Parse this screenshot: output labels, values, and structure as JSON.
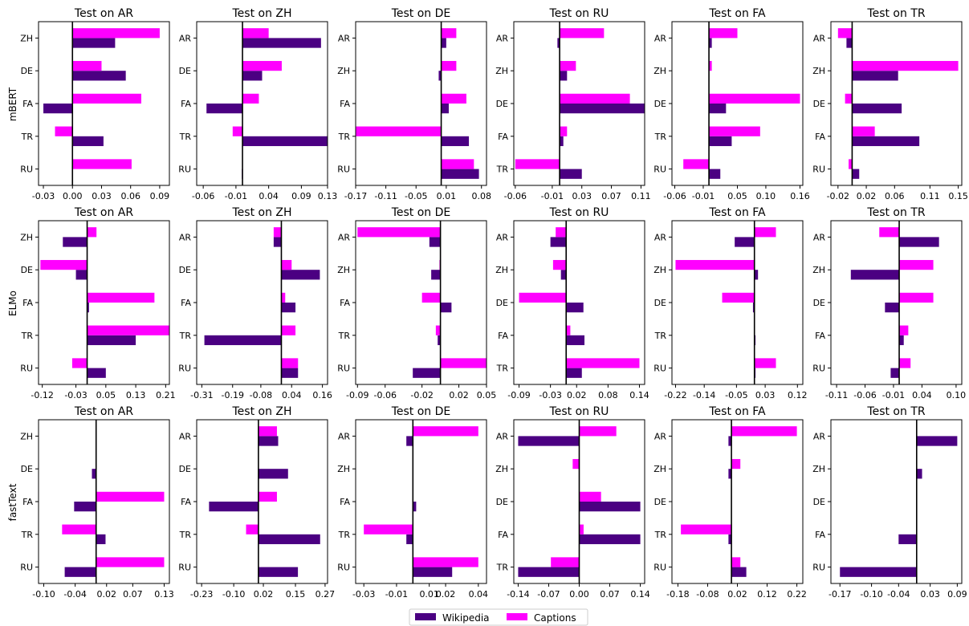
{
  "colors": {
    "wikipedia": "#4b0082",
    "captions": "#ff00ff",
    "axis": "#000000"
  },
  "legend": {
    "wikipedia": "Wikipedia",
    "captions": "Captions"
  },
  "row_labels": [
    "mBERT",
    "ELMo",
    "fastText"
  ],
  "chart_data": [
    {
      "type": "bar",
      "orientation": "horizontal",
      "model": "mBERT",
      "title": "Test on AR",
      "categories": [
        "RU",
        "TR",
        "FA",
        "DE",
        "ZH"
      ],
      "xticks": [
        "-0.03",
        "0.00",
        "0.03",
        "0.06",
        "0.09"
      ],
      "xlim": [
        -0.035,
        0.1
      ],
      "series": [
        {
          "name": "Wikipedia",
          "values": [
            0.0,
            0.032,
            -0.03,
            0.055,
            0.044
          ]
        },
        {
          "name": "Captions",
          "values": [
            0.061,
            -0.018,
            0.071,
            0.03,
            0.09
          ]
        }
      ]
    },
    {
      "type": "bar",
      "orientation": "horizontal",
      "model": "mBERT",
      "title": "Test on ZH",
      "categories": [
        "RU",
        "TR",
        "FA",
        "DE",
        "AR"
      ],
      "xticks": [
        "-0.06",
        "-0.01",
        "0.04",
        "0.09",
        "0.13"
      ],
      "xlim": [
        -0.07,
        0.13
      ],
      "series": [
        {
          "name": "Wikipedia",
          "values": [
            -0.001,
            0.13,
            -0.055,
            0.03,
            0.12
          ]
        },
        {
          "name": "Captions",
          "values": [
            0.0,
            -0.015,
            0.025,
            0.06,
            0.04
          ]
        }
      ]
    },
    {
      "type": "bar",
      "orientation": "horizontal",
      "model": "mBERT",
      "title": "Test on DE",
      "categories": [
        "RU",
        "TR",
        "FA",
        "ZH",
        "AR"
      ],
      "xticks": [
        "-0.17",
        "-0.11",
        "-0.05",
        "0.01",
        "0.08"
      ],
      "xlim": [
        -0.17,
        0.09
      ],
      "series": [
        {
          "name": "Wikipedia",
          "values": [
            0.075,
            0.055,
            0.015,
            -0.005,
            0.01
          ]
        },
        {
          "name": "Captions",
          "values": [
            0.065,
            -0.17,
            0.05,
            0.03,
            0.03
          ]
        }
      ]
    },
    {
      "type": "bar",
      "orientation": "horizontal",
      "model": "mBERT",
      "title": "Test on RU",
      "categories": [
        "TR",
        "FA",
        "DE",
        "ZH",
        "AR"
      ],
      "xticks": [
        "-0.06",
        "-0.01",
        "0.03",
        "0.07",
        "0.11"
      ],
      "xlim": [
        -0.062,
        0.115
      ],
      "series": [
        {
          "name": "Wikipedia",
          "values": [
            0.03,
            0.005,
            0.115,
            0.01,
            -0.003
          ]
        },
        {
          "name": "Captions",
          "values": [
            -0.06,
            0.01,
            0.095,
            0.022,
            0.06
          ]
        }
      ]
    },
    {
      "type": "bar",
      "orientation": "horizontal",
      "model": "mBERT",
      "title": "Test on FA",
      "categories": [
        "RU",
        "TR",
        "DE",
        "ZH",
        "AR"
      ],
      "xticks": [
        "-0.06",
        "-0.01",
        "0.05",
        "0.10",
        "0.16"
      ],
      "xlim": [
        -0.065,
        0.165
      ],
      "series": [
        {
          "name": "Wikipedia",
          "values": [
            0.02,
            0.04,
            0.03,
            0.0,
            0.005
          ]
        },
        {
          "name": "Captions",
          "values": [
            -0.045,
            0.09,
            0.16,
            0.005,
            0.05
          ]
        }
      ]
    },
    {
      "type": "bar",
      "orientation": "horizontal",
      "model": "mBERT",
      "title": "Test on TR",
      "categories": [
        "RU",
        "FA",
        "DE",
        "ZH",
        "AR"
      ],
      "xticks": [
        "-0.02",
        "0.02",
        "0.06",
        "0.11",
        "0.15"
      ],
      "xlim": [
        -0.03,
        0.155
      ],
      "series": [
        {
          "name": "Wikipedia",
          "values": [
            0.01,
            0.095,
            0.07,
            0.065,
            -0.008
          ]
        },
        {
          "name": "Captions",
          "values": [
            -0.005,
            0.032,
            -0.01,
            0.15,
            -0.02
          ]
        }
      ]
    },
    {
      "type": "bar",
      "orientation": "horizontal",
      "model": "ELMo",
      "title": "Test on AR",
      "categories": [
        "RU",
        "TR",
        "FA",
        "DE",
        "ZH"
      ],
      "xticks": [
        "-0.12",
        "-0.03",
        "0.05",
        "0.13",
        "0.21"
      ],
      "xlim": [
        -0.13,
        0.22
      ],
      "series": [
        {
          "name": "Wikipedia",
          "values": [
            0.05,
            0.13,
            0.005,
            -0.03,
            -0.065
          ]
        },
        {
          "name": "Captions",
          "values": [
            -0.04,
            0.22,
            0.18,
            -0.125,
            0.025
          ]
        }
      ]
    },
    {
      "type": "bar",
      "orientation": "horizontal",
      "model": "ELMo",
      "title": "Test on ZH",
      "categories": [
        "RU",
        "TR",
        "FA",
        "DE",
        "AR"
      ],
      "xticks": [
        "-0.31",
        "-0.19",
        "-0.08",
        "0.04",
        "0.16"
      ],
      "xlim": [
        -0.33,
        0.18
      ],
      "series": [
        {
          "name": "Wikipedia",
          "values": [
            0.065,
            -0.3,
            0.055,
            0.15,
            -0.03
          ]
        },
        {
          "name": "Captions",
          "values": [
            0.065,
            0.055,
            0.015,
            0.04,
            -0.03
          ]
        }
      ]
    },
    {
      "type": "bar",
      "orientation": "horizontal",
      "model": "ELMo",
      "title": "Test on DE",
      "categories": [
        "RU",
        "TR",
        "FA",
        "ZH",
        "AR"
      ],
      "xticks": [
        "-0.09",
        "-0.06",
        "-0.02",
        "0.02",
        "0.05"
      ],
      "xlim": [
        -0.092,
        0.05
      ],
      "series": [
        {
          "name": "Wikipedia",
          "values": [
            -0.03,
            -0.003,
            0.012,
            -0.01,
            -0.012
          ]
        },
        {
          "name": "Captions",
          "values": [
            0.05,
            -0.005,
            -0.02,
            -0.001,
            -0.09
          ]
        }
      ]
    },
    {
      "type": "bar",
      "orientation": "horizontal",
      "model": "ELMo",
      "title": "Test on RU",
      "categories": [
        "TR",
        "FA",
        "DE",
        "ZH",
        "AR"
      ],
      "xticks": [
        "-0.09",
        "-0.03",
        "0.02",
        "0.08",
        "0.14"
      ],
      "xlim": [
        -0.1,
        0.15
      ],
      "series": [
        {
          "name": "Wikipedia",
          "values": [
            0.03,
            0.035,
            0.033,
            -0.01,
            -0.03
          ]
        },
        {
          "name": "Captions",
          "values": [
            0.14,
            0.008,
            -0.09,
            -0.025,
            -0.02
          ]
        }
      ]
    },
    {
      "type": "bar",
      "orientation": "horizontal",
      "model": "ELMo",
      "title": "Test on FA",
      "categories": [
        "RU",
        "TR",
        "DE",
        "ZH",
        "AR"
      ],
      "xticks": [
        "-0.22",
        "-0.14",
        "-0.05",
        "0.03",
        "0.12"
      ],
      "xlim": [
        -0.23,
        0.135
      ],
      "series": [
        {
          "name": "Wikipedia",
          "values": [
            0.003,
            0.003,
            -0.004,
            0.01,
            -0.055
          ]
        },
        {
          "name": "Captions",
          "values": [
            0.06,
            -0.001,
            -0.09,
            -0.22,
            0.06
          ]
        }
      ]
    },
    {
      "type": "bar",
      "orientation": "horizontal",
      "model": "ELMo",
      "title": "Test on TR",
      "categories": [
        "RU",
        "FA",
        "DE",
        "ZH",
        "AR"
      ],
      "xticks": [
        "-0.11",
        "-0.06",
        "-0.01",
        "0.04",
        "0.10"
      ],
      "xlim": [
        -0.12,
        0.11
      ],
      "series": [
        {
          "name": "Wikipedia",
          "values": [
            -0.015,
            0.008,
            -0.025,
            -0.085,
            0.07
          ]
        },
        {
          "name": "Captions",
          "values": [
            0.02,
            0.016,
            0.06,
            0.06,
            -0.035
          ]
        }
      ]
    },
    {
      "type": "bar",
      "orientation": "horizontal",
      "model": "fastText",
      "title": "Test on AR",
      "categories": [
        "RU",
        "TR",
        "FA",
        "DE",
        "ZH"
      ],
      "xticks": [
        "-0.10",
        "-0.04",
        "0.02",
        "0.07",
        "0.13"
      ],
      "xlim": [
        -0.11,
        0.14
      ],
      "series": [
        {
          "name": "Wikipedia",
          "values": [
            -0.06,
            0.018,
            -0.042,
            -0.008,
            0.0
          ]
        },
        {
          "name": "Captions",
          "values": [
            0.13,
            -0.065,
            0.13,
            0.0,
            0.0
          ]
        }
      ]
    },
    {
      "type": "bar",
      "orientation": "horizontal",
      "model": "fastText",
      "title": "Test on ZH",
      "categories": [
        "RU",
        "TR",
        "FA",
        "DE",
        "AR"
      ],
      "xticks": [
        "-0.23",
        "-0.10",
        "0.02",
        "0.15",
        "0.27"
      ],
      "xlim": [
        -0.25,
        0.28
      ],
      "series": [
        {
          "name": "Wikipedia",
          "values": [
            0.16,
            0.25,
            -0.2,
            0.12,
            0.08
          ]
        },
        {
          "name": "Captions",
          "values": [
            0.0,
            -0.05,
            0.075,
            0.0,
            0.075
          ]
        }
      ]
    },
    {
      "type": "bar",
      "orientation": "horizontal",
      "model": "fastText",
      "title": "Test on DE",
      "categories": [
        "RU",
        "TR",
        "FA",
        "ZH",
        "AR"
      ],
      "xticks": [
        "-0.03",
        "-0.01",
        "0.01",
        "0.02",
        "0.04"
      ],
      "xlim": [
        -0.035,
        0.045
      ],
      "series": [
        {
          "name": "Wikipedia",
          "values": [
            0.024,
            -0.004,
            0.002,
            0.0,
            -0.004
          ]
        },
        {
          "name": "Captions",
          "values": [
            0.04,
            -0.03,
            0.0,
            0.0,
            0.04
          ]
        }
      ]
    },
    {
      "type": "bar",
      "orientation": "horizontal",
      "model": "fastText",
      "title": "Test on RU",
      "categories": [
        "TR",
        "FA",
        "DE",
        "ZH",
        "AR"
      ],
      "xticks": [
        "-0.14",
        "-0.07",
        "0.00",
        "0.07",
        "0.14"
      ],
      "xlim": [
        -0.15,
        0.15
      ],
      "series": [
        {
          "name": "Wikipedia",
          "values": [
            -0.14,
            0.14,
            0.14,
            0.0,
            -0.14
          ]
        },
        {
          "name": "Captions",
          "values": [
            -0.065,
            0.01,
            0.05,
            -0.015,
            0.085
          ]
        }
      ]
    },
    {
      "type": "bar",
      "orientation": "horizontal",
      "model": "fastText",
      "title": "Test on FA",
      "categories": [
        "RU",
        "TR",
        "DE",
        "ZH",
        "AR"
      ],
      "xticks": [
        "-0.18",
        "-0.08",
        "0.02",
        "0.12",
        "0.22"
      ],
      "xlim": [
        -0.2,
        0.24
      ],
      "series": [
        {
          "name": "Wikipedia",
          "values": [
            0.05,
            -0.01,
            0.0,
            -0.01,
            -0.01
          ]
        },
        {
          "name": "Captions",
          "values": [
            0.03,
            -0.17,
            0.0,
            0.03,
            0.22
          ]
        }
      ]
    },
    {
      "type": "bar",
      "orientation": "horizontal",
      "model": "fastText",
      "title": "Test on TR",
      "categories": [
        "RU",
        "FA",
        "DE",
        "ZH",
        "AR"
      ],
      "xticks": [
        "-0.17",
        "-0.10",
        "-0.04",
        "0.03",
        "0.09"
      ],
      "xlim": [
        -0.19,
        0.1
      ],
      "series": [
        {
          "name": "Wikipedia",
          "values": [
            -0.17,
            -0.04,
            0.0,
            0.012,
            0.09
          ]
        },
        {
          "name": "Captions",
          "values": [
            0.0,
            0.0,
            0.0,
            0.0,
            0.0
          ]
        }
      ]
    }
  ]
}
